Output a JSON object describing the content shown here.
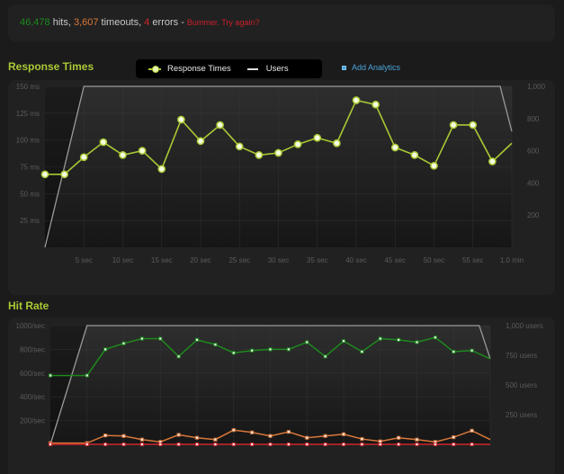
{
  "summary": {
    "hits": "46,478",
    "hits_label": " hits, ",
    "timeouts": "3,607",
    "timeouts_label": " timeouts, ",
    "errors": "4",
    "errors_label": " errors - ",
    "message": "Bummer. Try again?"
  },
  "response_times": {
    "title": "Response Times",
    "legend": [
      {
        "label": "Response Times",
        "icon": "line-dot-icon"
      },
      {
        "label": "Users",
        "icon": "line-icon"
      }
    ],
    "add_analytics_label": "Add Analytics"
  },
  "hit_rate": {
    "title": "Hit Rate"
  },
  "colors": {
    "accent": "#a9c934",
    "hits": "#1d8a1d",
    "timeouts": "#d9773a",
    "errors": "#d0262d",
    "users": "#9a9a9a",
    "link": "#4ba3d9"
  },
  "chart_data": [
    {
      "type": "line",
      "title": "Response Times",
      "xlabel": "",
      "ylabel": "ms",
      "ylim": [
        0,
        150
      ],
      "y2lim": [
        0,
        1000
      ],
      "grid": true,
      "legend_position": "top",
      "x_ticks": [
        "5 sec",
        "10 sec",
        "15 sec",
        "20 sec",
        "25 sec",
        "30 sec",
        "35 sec",
        "40 sec",
        "45 sec",
        "50 sec",
        "55 sec",
        "1.0 min"
      ],
      "y_ticks": [
        "25 ms",
        "50 ms",
        "75 ms",
        "100 ms",
        "125 ms",
        "150 ms"
      ],
      "y2_ticks": [
        "200",
        "400",
        "600",
        "800",
        "1,000"
      ],
      "x": [
        0,
        2.5,
        5,
        7.5,
        10,
        12.5,
        15,
        17.5,
        20,
        22.5,
        25,
        27.5,
        30,
        32.5,
        35,
        37.5,
        40,
        42.5,
        45,
        47.5,
        50,
        52.5,
        55,
        57.5,
        60
      ],
      "series": [
        {
          "name": "Response Times",
          "axis": "left",
          "color": "#a9c934",
          "values": [
            68,
            68,
            84,
            98,
            86,
            90,
            73,
            119,
            99,
            114,
            94,
            86,
            88,
            96,
            102,
            97,
            137,
            133,
            93,
            86,
            76,
            114,
            114,
            80,
            97
          ]
        },
        {
          "name": "Users",
          "axis": "right",
          "color": "#9a9a9a",
          "points": [
            [
              0,
              0
            ],
            [
              5,
              1000
            ],
            [
              58.5,
              1000
            ],
            [
              60,
              720
            ]
          ]
        }
      ]
    },
    {
      "type": "line",
      "title": "Hit Rate",
      "xlabel": "",
      "ylabel": "/sec",
      "ylim": [
        0,
        1000
      ],
      "y2lim": [
        0,
        1000
      ],
      "grid": true,
      "y_ticks": [
        "200/sec",
        "400/sec",
        "600/sec",
        "800/sec",
        "1000/sec"
      ],
      "y2_ticks": [
        "250 users",
        "500 users",
        "750 users",
        "1,000 users"
      ],
      "x": [
        0,
        5,
        7.5,
        10,
        12.5,
        15,
        17.5,
        20,
        22.5,
        25,
        27.5,
        30,
        32.5,
        35,
        37.5,
        40,
        42.5,
        45,
        47.5,
        50,
        52.5,
        55,
        57.5,
        60
      ],
      "series": [
        {
          "name": "Hits",
          "axis": "left",
          "color": "#1d8a1d",
          "values": [
            580,
            580,
            800,
            850,
            890,
            890,
            740,
            880,
            840,
            770,
            790,
            800,
            800,
            860,
            740,
            870,
            780,
            890,
            880,
            860,
            900,
            780,
            790,
            720
          ]
        },
        {
          "name": "Timeouts",
          "axis": "left",
          "color": "#d9773a",
          "values": [
            10,
            10,
            75,
            70,
            40,
            20,
            80,
            55,
            40,
            120,
            100,
            70,
            105,
            55,
            70,
            85,
            45,
            25,
            55,
            40,
            20,
            60,
            115,
            40
          ]
        },
        {
          "name": "Errors",
          "axis": "left",
          "color": "#d0262d",
          "values": [
            0,
            0,
            0,
            0,
            0,
            0,
            0,
            0,
            0,
            0,
            0,
            0,
            0,
            0,
            0,
            0,
            0,
            0,
            0,
            0,
            0,
            0,
            0,
            0
          ]
        },
        {
          "name": "Users",
          "axis": "right",
          "color": "#9a9a9a",
          "points": [
            [
              0,
              0
            ],
            [
              5,
              1000
            ],
            [
              58.5,
              1000
            ],
            [
              60,
              720
            ]
          ]
        }
      ]
    }
  ]
}
